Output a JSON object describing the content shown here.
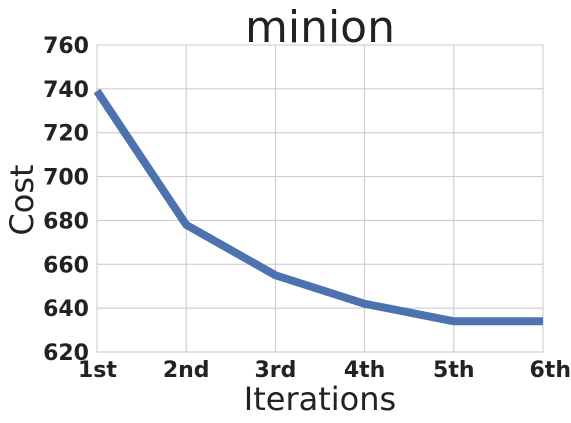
{
  "chart_data": {
    "type": "line",
    "title": "minion",
    "xlabel": "Iterations",
    "ylabel": "Cost",
    "categories": [
      "1st",
      "2nd",
      "3rd",
      "4th",
      "5th",
      "6th"
    ],
    "series": [
      {
        "values": [
          739,
          678,
          655,
          642,
          634,
          634
        ],
        "color": "#4c72b0"
      }
    ],
    "ylim": [
      620,
      760
    ],
    "yticks": [
      620,
      640,
      660,
      680,
      700,
      720,
      740,
      760
    ],
    "grid": true,
    "legend": "none"
  }
}
